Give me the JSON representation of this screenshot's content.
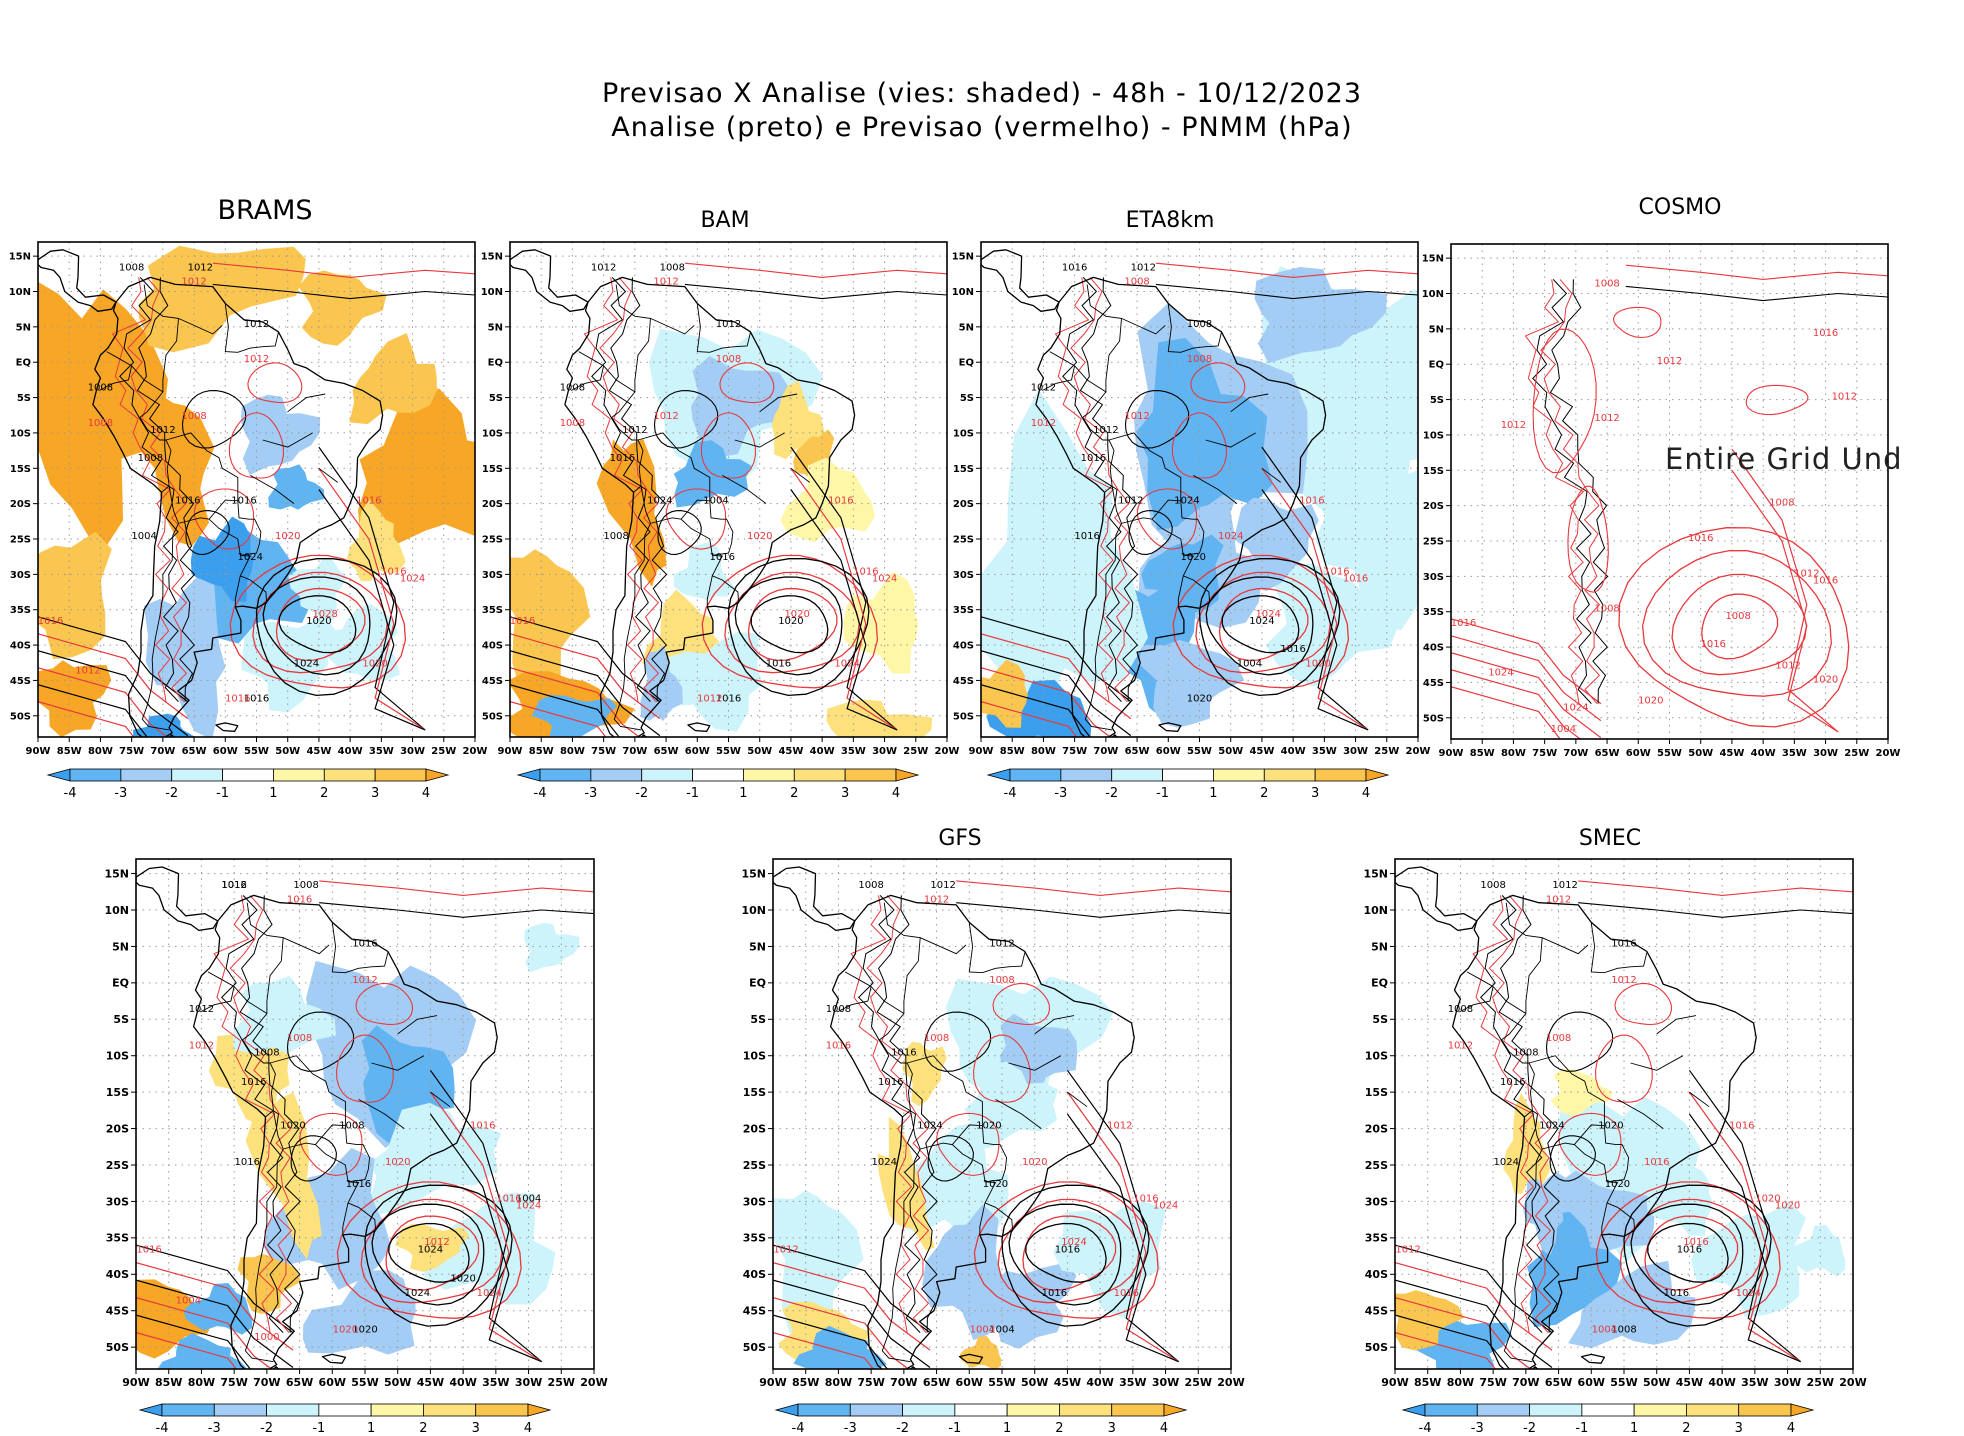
{
  "figure": {
    "title_line1": "Previsao X Analise (vies: shaded) - 48h - 10/12/2023",
    "title_line2": "Analise (preto) e Previsao (vermelho) - PNMM (hPa)"
  },
  "axes": {
    "lon_labels": [
      "90W",
      "85W",
      "80W",
      "75W",
      "70W",
      "65W",
      "60W",
      "55W",
      "50W",
      "45W",
      "40W",
      "35W",
      "30W",
      "25W",
      "20W"
    ],
    "lat_labels": [
      "15N",
      "10N",
      "5N",
      "EQ",
      "5S",
      "10S",
      "15S",
      "20S",
      "25S",
      "30S",
      "35S",
      "40S",
      "45S",
      "50S"
    ]
  },
  "colorbar": {
    "labels": [
      "-4",
      "-3",
      "-2",
      "-1",
      "1",
      "2",
      "3",
      "4"
    ],
    "colors": [
      "#3c9fee",
      "#61b4f2",
      "#a3cdf5",
      "#cdf3fb",
      "#ffffff",
      "#fff7a8",
      "#fde17c",
      "#fbc64f",
      "#f8a625"
    ]
  },
  "colors": {
    "analysis": "#000000",
    "forecast": "#e8383d"
  },
  "panels": [
    {
      "id": "brams",
      "title": "BRAMS",
      "labels_black": [
        "1008",
        "1012",
        "1012",
        "1008",
        "1012",
        "1008",
        "1016",
        "1024",
        "1020",
        "1004",
        "1016",
        "1016",
        "1024"
      ],
      "labels_red": [
        "1012",
        "1008",
        "1008",
        "1012",
        "1016",
        "1016",
        "1020",
        "1020",
        "1024",
        "1028",
        "1016",
        "1016",
        "1012"
      ],
      "message": ""
    },
    {
      "id": "bam",
      "title": "BAM",
      "labels_black": [
        "1012",
        "1008",
        "1012",
        "1008",
        "1012",
        "1016",
        "1024",
        "1016",
        "1020",
        "1008",
        "1004",
        "1016",
        "1016"
      ],
      "labels_red": [
        "1012",
        "1008",
        "1012",
        "1008",
        "1016",
        "1016",
        "1020",
        "1024",
        "1024",
        "1020",
        "1016",
        "1012"
      ],
      "message": ""
    },
    {
      "id": "eta8km",
      "title": "ETA8km",
      "labels_black": [
        "1016",
        "1012",
        "1008",
        "1012",
        "1012",
        "1016",
        "1012",
        "1020",
        "1024",
        "1016",
        "1024",
        "1020",
        "1004",
        "1016"
      ],
      "labels_red": [
        "1008",
        "1012",
        "1012",
        "1008",
        "1016",
        "1016",
        "1024",
        "1020",
        "1016",
        "1024"
      ],
      "message": ""
    },
    {
      "id": "cosmo",
      "title": "COSMO",
      "labels_black": [],
      "labels_red": [
        "1008",
        "1012",
        "1012",
        "1012",
        "1008",
        "1012",
        "1016",
        "1012",
        "1016",
        "1008",
        "1016",
        "1020",
        "1024",
        "1024",
        "1020",
        "1016",
        "1012",
        "1016",
        "1008",
        "1004"
      ],
      "message": "Entire Grid Und"
    },
    {
      "id": "wrf",
      "title": "",
      "labels_black": [
        "1012",
        "1008",
        "1016",
        "1012",
        "1008",
        "1016",
        "1020",
        "1016",
        "1024",
        "1016",
        "1008",
        "1020",
        "1024",
        "1020",
        "1004",
        "1016"
      ],
      "labels_red": [
        "1016",
        "1012",
        "1008",
        "1012",
        "1016",
        "1016",
        "1020",
        "1024",
        "1024",
        "1012",
        "1016",
        "1020",
        "1004",
        "1000"
      ],
      "message": ""
    },
    {
      "id": "gfs",
      "title": "GFS",
      "labels_black": [
        "1008",
        "1012",
        "1012",
        "1008",
        "1016",
        "1016",
        "1024",
        "1020",
        "1016",
        "1024",
        "1020",
        "1004",
        "1016"
      ],
      "labels_red": [
        "1012",
        "1016",
        "1008",
        "1008",
        "1012",
        "1016",
        "1020",
        "1016",
        "1024",
        "1024",
        "1012",
        "1004"
      ],
      "message": ""
    },
    {
      "id": "smec",
      "title": "SMEC",
      "labels_black": [
        "1008",
        "1012",
        "1016",
        "1008",
        "1008",
        "1016",
        "1024",
        "1020",
        "1016",
        "1024",
        "1020",
        "1008",
        "1016"
      ],
      "labels_red": [
        "1012",
        "1012",
        "1008",
        "1012",
        "1016",
        "1020",
        "1016",
        "1024",
        "1020",
        "1016",
        "1012",
        "1004"
      ],
      "message": ""
    }
  ]
}
